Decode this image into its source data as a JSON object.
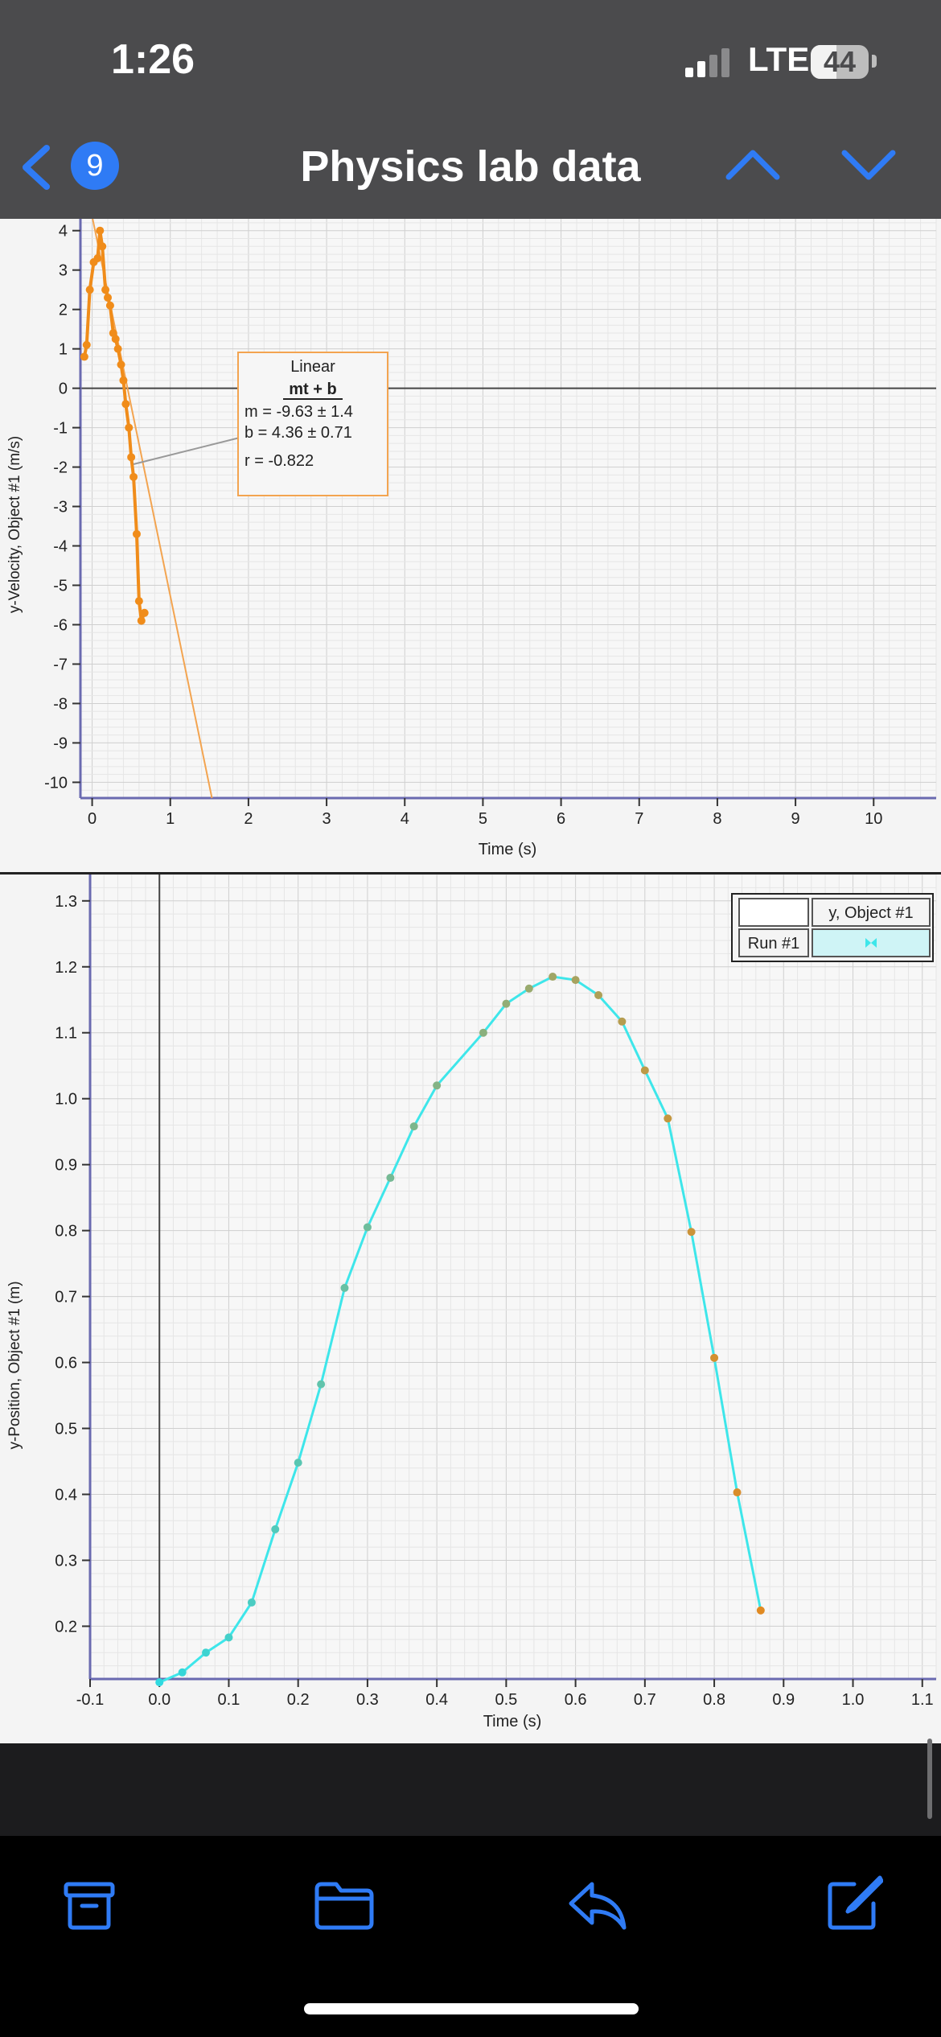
{
  "status_bar": {
    "time": "1:26",
    "network": "LTE",
    "battery": "44"
  },
  "nav": {
    "back_count": "9",
    "title": "Physics lab data"
  },
  "colors": {
    "accent": "#2f7bf5",
    "velocity_series": "#f08c1a",
    "position_line": "#3ee6ea",
    "position_points_early": "#2fd9e0",
    "position_points_late": "#e08a22"
  },
  "velocity_chart": {
    "chart_data": {
      "type": "scatter",
      "xlabel": "Time (s)",
      "ylabel": "y-Velocity, Object #1 (m/s)",
      "xlim": [
        -0.15,
        10.8
      ],
      "ylim": [
        -10.4,
        4.3
      ],
      "x_ticks": [
        0,
        1,
        2,
        3,
        4,
        5,
        6,
        7,
        8,
        9,
        10
      ],
      "y_ticks": [
        4,
        3,
        2,
        1,
        0,
        -1,
        -2,
        -3,
        -4,
        -5,
        -6,
        -7,
        -8,
        -9,
        -10
      ],
      "grid": true,
      "series": [
        {
          "x": [
            -0.1,
            -0.07,
            -0.03,
            0.02,
            0.07,
            0.1,
            0.13,
            0.17,
            0.2,
            0.23,
            0.27,
            0.3,
            0.33,
            0.37,
            0.4,
            0.43,
            0.47,
            0.5,
            0.53,
            0.57,
            0.6,
            0.63,
            0.67,
            0.7,
            0.73,
            0.77,
            0.8
          ],
          "y": [
            0.8,
            1.1,
            2.5,
            3.2,
            3.3,
            4.0,
            3.6,
            2.5,
            2.3,
            2.1,
            1.4,
            1.25,
            1.0,
            0.6,
            0.2,
            -0.4,
            -1.0,
            -1.75,
            -2.25,
            -3.7,
            -5.4,
            -5.9,
            -5.7,
            null,
            null,
            null,
            null
          ]
        }
      ],
      "fit": {
        "type": "linear",
        "label": "Linear",
        "equation": "mt + b",
        "m_line": "m = -9.63 ± 1.4",
        "b_line": "b  = 4.36  ± 0.71",
        "r_line": "r = -0.822",
        "m": -9.63,
        "b": 4.36
      }
    }
  },
  "position_chart": {
    "chart_data": {
      "type": "line",
      "xlabel": "Time (s)",
      "ylabel": "y-Position, Object #1 (m)",
      "xlim": [
        -0.1,
        1.12
      ],
      "ylim": [
        0.12,
        1.34
      ],
      "x_ticks": [
        "-0.1",
        "0.0",
        "0.1",
        "0.2",
        "0.3",
        "0.4",
        "0.5",
        "0.6",
        "0.7",
        "0.8",
        "0.9",
        "1.0",
        "1.1"
      ],
      "y_ticks": [
        "1.3",
        "1.2",
        "1.1",
        "1.0",
        "0.9",
        "0.8",
        "0.7",
        "0.6",
        "0.5",
        "0.4",
        "0.3",
        "0.2"
      ],
      "grid": true,
      "legend": {
        "placement": "top-right",
        "series_name": "y, Object #1",
        "run_label": "Run #1"
      },
      "series": [
        {
          "name": "y, Object #1",
          "x": [
            0.0,
            0.033,
            0.067,
            0.1,
            0.133,
            0.167,
            0.2,
            0.233,
            0.267,
            0.3,
            0.333,
            0.367,
            0.4,
            0.467,
            0.5,
            0.533,
            0.567,
            0.6,
            0.633,
            0.667,
            0.7,
            0.733,
            0.767,
            0.8,
            0.833,
            0.867
          ],
          "y": [
            0.115,
            0.13,
            0.16,
            0.183,
            0.236,
            0.347,
            0.448,
            0.567,
            0.713,
            0.805,
            0.88,
            0.958,
            1.02,
            1.1,
            1.144,
            1.167,
            1.185,
            1.18,
            1.157,
            1.117,
            1.043,
            0.97,
            0.798,
            0.607,
            0.403,
            0.224
          ]
        }
      ]
    }
  },
  "toolbar": {
    "items": [
      "archive-icon",
      "folder-icon",
      "reply-icon",
      "compose-icon"
    ]
  }
}
